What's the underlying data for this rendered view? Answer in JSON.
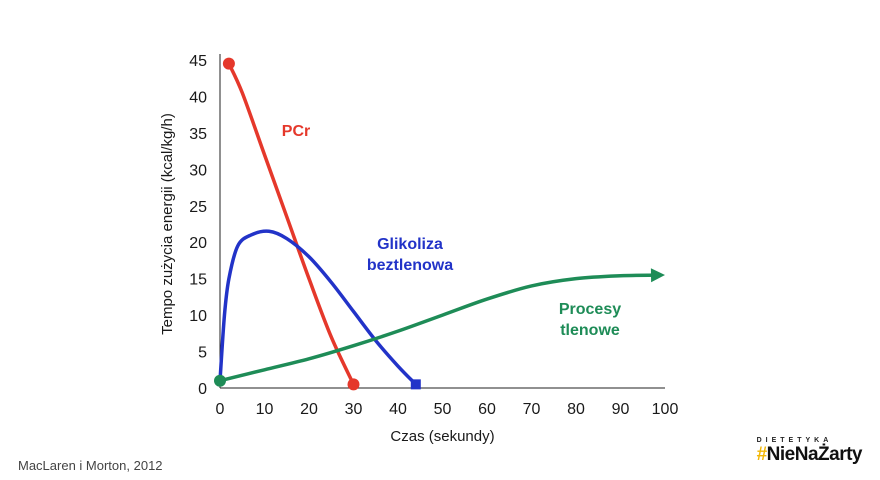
{
  "chart_data": {
    "type": "line",
    "xlabel": "Czas (sekundy)",
    "ylabel": "Tempo zużycia energii (kcal/kg/h)",
    "xlim": [
      0,
      100
    ],
    "ylim": [
      0,
      45
    ],
    "xticks": [
      0,
      10,
      20,
      30,
      40,
      50,
      60,
      70,
      80,
      90,
      100
    ],
    "yticks": [
      0,
      5,
      10,
      15,
      20,
      25,
      30,
      35,
      40,
      45
    ],
    "grid": false,
    "series": [
      {
        "name": "PCr",
        "color": "#e5382b",
        "x": [
          2,
          5,
          10,
          15,
          20,
          25,
          30
        ],
        "y": [
          44.5,
          40.5,
          32,
          23.5,
          15,
          7,
          0.5
        ],
        "start_marker": "circle",
        "end_marker": "circle"
      },
      {
        "name": "Glikoliza beztlenowa",
        "color": "#2233c8",
        "x": [
          0,
          1,
          2,
          4,
          7,
          11,
          15,
          20,
          25,
          30,
          35,
          40,
          44
        ],
        "y": [
          1,
          10,
          15,
          19.5,
          21,
          21.5,
          20.5,
          18,
          14.5,
          10.5,
          6.5,
          3,
          0.5
        ],
        "end_marker": "square"
      },
      {
        "name": "Procesy tlenowe",
        "color": "#1e8c57",
        "x": [
          0,
          10,
          20,
          30,
          40,
          50,
          60,
          70,
          80,
          90,
          100
        ],
        "y": [
          1,
          2.5,
          4,
          5.8,
          7.8,
          10,
          12.2,
          14,
          15,
          15.4,
          15.5
        ],
        "start_marker": "circle",
        "end_marker": "arrow"
      }
    ],
    "series_label_lines": {
      "PCr": [
        "PCr"
      ],
      "Glikoliza beztlenowa": [
        "Glikoliza",
        "beztlenowa"
      ],
      "Procesy tlenowe": [
        "Procesy",
        "tlenowe"
      ]
    }
  },
  "source": "MacLaren i Morton, 2012",
  "brand": {
    "top": "DIETETYKA",
    "hash": "#",
    "name": "NieNaŻarty"
  }
}
